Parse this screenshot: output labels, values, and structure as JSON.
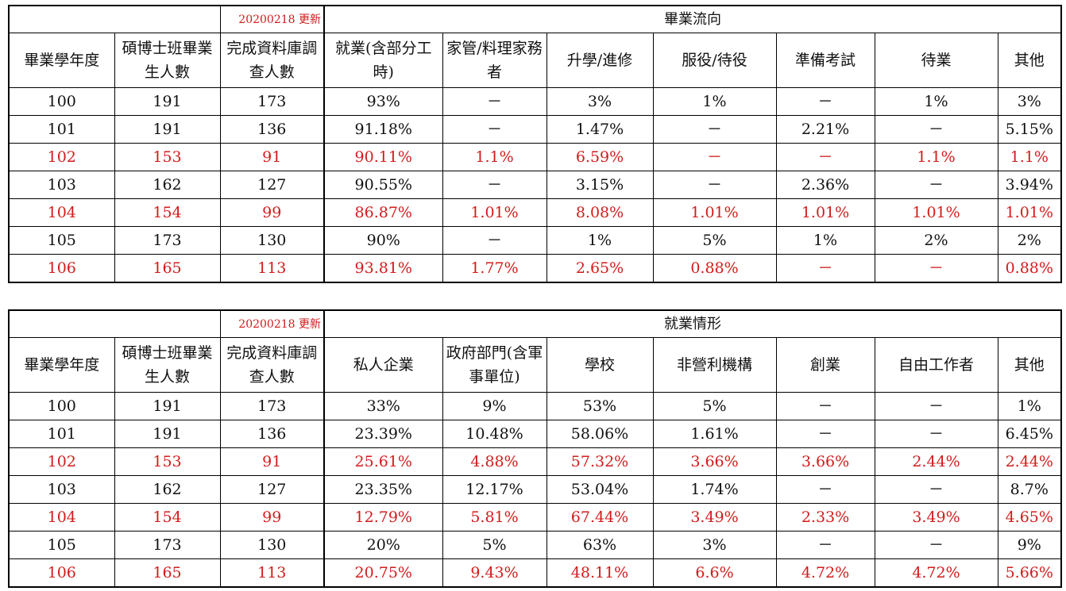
{
  "update_note": "20200218 更新",
  "common_headers": [
    "畢業學年度",
    "碩博士班畢業生人數",
    "完成資料庫調查人數"
  ],
  "flow_table": {
    "group_title": "畢業流向",
    "columns": [
      "就業(含部分工時)",
      "家管/料理家務者",
      "升學/進修",
      "服役/待役",
      "準備考試",
      "待業",
      "其他"
    ],
    "rows": [
      {
        "year": "100",
        "grads": "191",
        "surveyed": "173",
        "values": [
          "93%",
          "－",
          "3%",
          "1%",
          "－",
          "1%",
          "3%"
        ],
        "highlight": false
      },
      {
        "year": "101",
        "grads": "191",
        "surveyed": "136",
        "values": [
          "91.18%",
          "－",
          "1.47%",
          "－",
          "2.21%",
          "－",
          "5.15%"
        ],
        "highlight": false
      },
      {
        "year": "102",
        "grads": "153",
        "surveyed": "91",
        "values": [
          "90.11%",
          "1.1%",
          "6.59%",
          "－",
          "－",
          "1.1%",
          "1.1%"
        ],
        "highlight": true
      },
      {
        "year": "103",
        "grads": "162",
        "surveyed": "127",
        "values": [
          "90.55%",
          "－",
          "3.15%",
          "－",
          "2.36%",
          "－",
          "3.94%"
        ],
        "highlight": false
      },
      {
        "year": "104",
        "grads": "154",
        "surveyed": "99",
        "values": [
          "86.87%",
          "1.01%",
          "8.08%",
          "1.01%",
          "1.01%",
          "1.01%",
          "1.01%"
        ],
        "highlight": true
      },
      {
        "year": "105",
        "grads": "173",
        "surveyed": "130",
        "values": [
          "90%",
          "－",
          "1%",
          "5%",
          "1%",
          "2%",
          "2%"
        ],
        "highlight": false
      },
      {
        "year": "106",
        "grads": "165",
        "surveyed": "113",
        "values": [
          "93.81%",
          "1.77%",
          "2.65%",
          "0.88%",
          "－",
          "－",
          "0.88%"
        ],
        "highlight": true
      }
    ]
  },
  "employment_table": {
    "group_title": "就業情形",
    "columns": [
      "私人企業",
      "政府部門(含軍事單位)",
      "學校",
      "非營利機構",
      "創業",
      "自由工作者",
      "其他"
    ],
    "rows": [
      {
        "year": "100",
        "grads": "191",
        "surveyed": "173",
        "values": [
          "33%",
          "9%",
          "53%",
          "5%",
          "－",
          "－",
          "1%"
        ],
        "highlight": false
      },
      {
        "year": "101",
        "grads": "191",
        "surveyed": "136",
        "values": [
          "23.39%",
          "10.48%",
          "58.06%",
          "1.61%",
          "－",
          "－",
          "6.45%"
        ],
        "highlight": false
      },
      {
        "year": "102",
        "grads": "153",
        "surveyed": "91",
        "values": [
          "25.61%",
          "4.88%",
          "57.32%",
          "3.66%",
          "3.66%",
          "2.44%",
          "2.44%"
        ],
        "highlight": true
      },
      {
        "year": "103",
        "grads": "162",
        "surveyed": "127",
        "values": [
          "23.35%",
          "12.17%",
          "53.04%",
          "1.74%",
          "－",
          "－",
          "8.7%"
        ],
        "highlight": false
      },
      {
        "year": "104",
        "grads": "154",
        "surveyed": "99",
        "values": [
          "12.79%",
          "5.81%",
          "67.44%",
          "3.49%",
          "2.33%",
          "3.49%",
          "4.65%"
        ],
        "highlight": true
      },
      {
        "year": "105",
        "grads": "173",
        "surveyed": "130",
        "values": [
          "20%",
          "5%",
          "63%",
          "3%",
          "－",
          "－",
          "9%"
        ],
        "highlight": false
      },
      {
        "year": "106",
        "grads": "165",
        "surveyed": "113",
        "values": [
          "20.75%",
          "9.43%",
          "48.11%",
          "6.6%",
          "4.72%",
          "4.72%",
          "5.66%"
        ],
        "highlight": true
      }
    ]
  },
  "colors": {
    "highlight_text": "#d21c1c",
    "border": "#000000",
    "background": "#ffffff"
  }
}
